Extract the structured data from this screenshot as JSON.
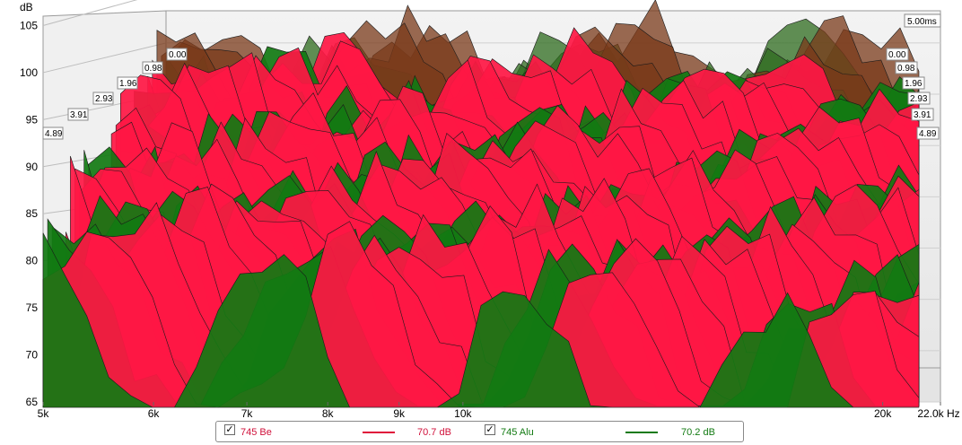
{
  "chart_data": {
    "type": "area",
    "subtype": "cumulative-spectral-decay-waterfall",
    "ylabel": "dB",
    "xunit": "Hz",
    "xscale": "log",
    "x_ticks": [
      "5k",
      "6k",
      "7k",
      "8k",
      "9k",
      "10k",
      "20k",
      "22.0k Hz"
    ],
    "x_tick_values": [
      5000,
      6000,
      7000,
      8000,
      9000,
      10000,
      20000,
      22000
    ],
    "y_ticks": [
      "105",
      "100",
      "95",
      "90",
      "85",
      "80",
      "75",
      "70",
      "65"
    ],
    "y_tick_values": [
      105,
      100,
      95,
      90,
      85,
      80,
      75,
      70,
      65
    ],
    "ylim": [
      65,
      106
    ],
    "xlim": [
      5000,
      22000
    ],
    "time_end_label": "5.00ms",
    "time_slices_left": [
      "0.00",
      "0.98",
      "1.96",
      "2.93",
      "3.91",
      "4.89"
    ],
    "time_slices_right": [
      "0.00",
      "0.98",
      "1.96",
      "2.93",
      "3.91",
      "4.89"
    ],
    "series": [
      {
        "name": "745 Be",
        "value_label": "70.7 dB",
        "color": "#ff1744",
        "back_color": "#7a3a1a",
        "checked": true
      },
      {
        "name": "745 Alu",
        "value_label": "70.2 dB",
        "color": "#127a12",
        "back_color": "#2e6b1e",
        "checked": true
      }
    ],
    "grid": true
  }
}
